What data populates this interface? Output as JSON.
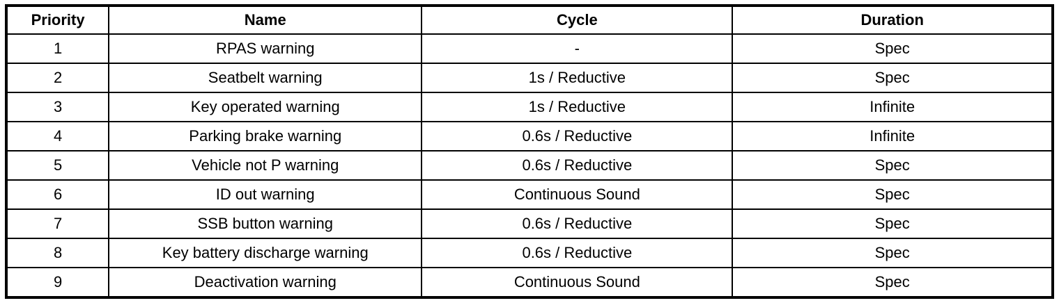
{
  "table": {
    "columns": [
      {
        "key": "priority",
        "label": "Priority"
      },
      {
        "key": "name",
        "label": "Name"
      },
      {
        "key": "cycle",
        "label": "Cycle"
      },
      {
        "key": "duration",
        "label": "Duration"
      }
    ],
    "rows": [
      {
        "priority": "1",
        "name": "RPAS warning",
        "cycle": "-",
        "duration": "Spec"
      },
      {
        "priority": "2",
        "name": "Seatbelt warning",
        "cycle": "1s / Reductive",
        "duration": "Spec"
      },
      {
        "priority": "3",
        "name": "Key operated warning",
        "cycle": "1s / Reductive",
        "duration": "Infinite"
      },
      {
        "priority": "4",
        "name": "Parking brake warning",
        "cycle": "0.6s / Reductive",
        "duration": "Infinite"
      },
      {
        "priority": "5",
        "name": "Vehicle not P warning",
        "cycle": "0.6s / Reductive",
        "duration": "Spec"
      },
      {
        "priority": "6",
        "name": "ID out warning",
        "cycle": "Continuous Sound",
        "duration": "Spec"
      },
      {
        "priority": "7",
        "name": "SSB button warning",
        "cycle": "0.6s / Reductive",
        "duration": "Spec"
      },
      {
        "priority": "8",
        "name": "Key battery discharge warning",
        "cycle": "0.6s / Reductive",
        "duration": "Spec"
      },
      {
        "priority": "9",
        "name": "Deactivation warning",
        "cycle": "Continuous Sound",
        "duration": "Spec"
      }
    ],
    "colors": {
      "border": "#000000",
      "background": "#ffffff",
      "text": "#000000"
    }
  }
}
